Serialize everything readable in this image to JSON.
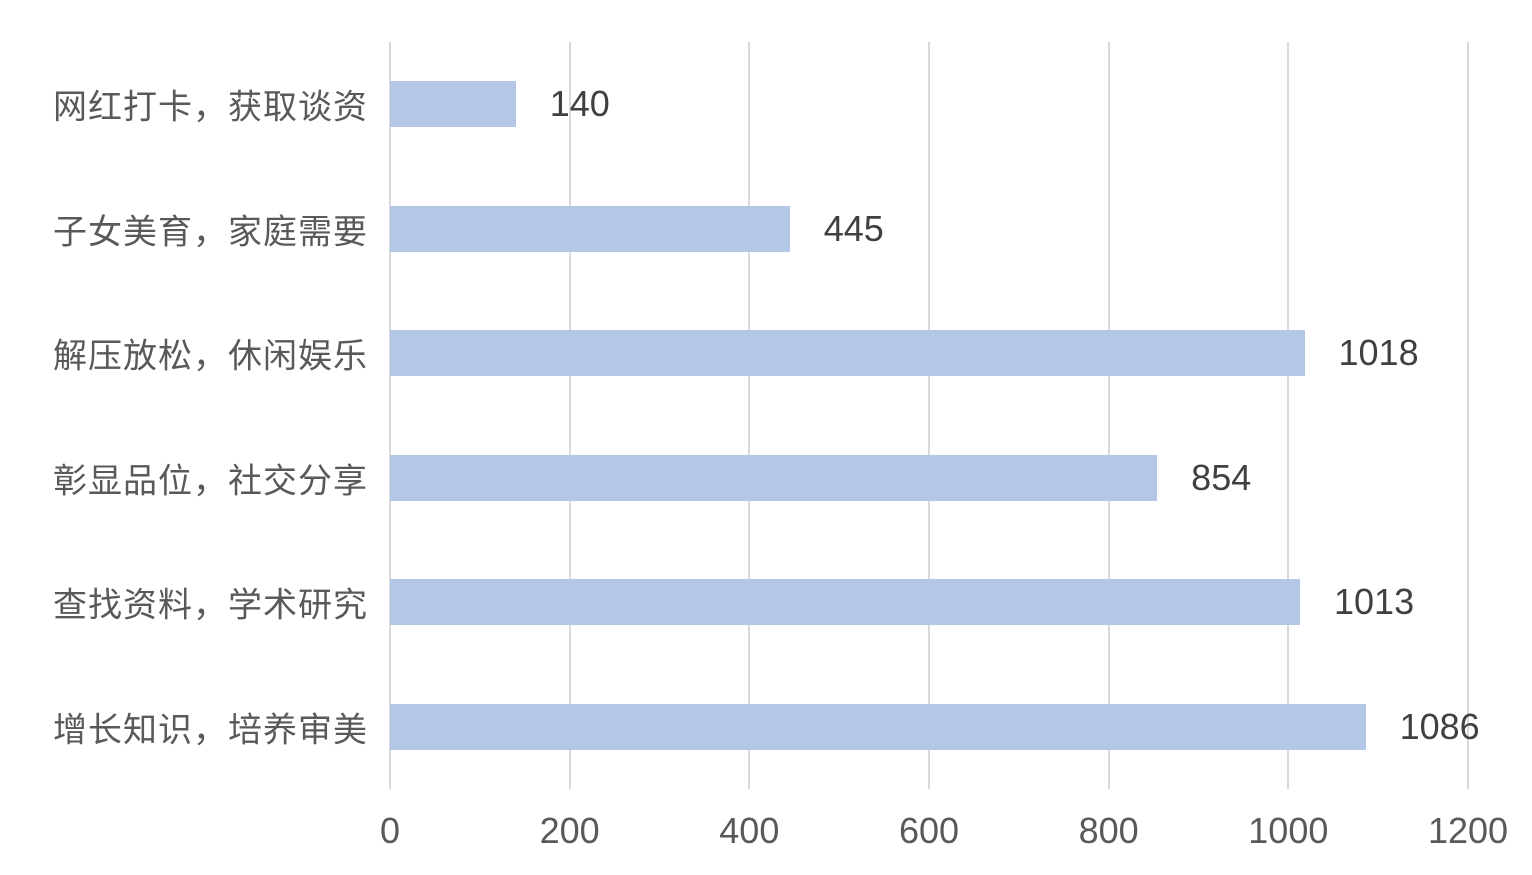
{
  "chart_data": {
    "type": "bar",
    "orientation": "horizontal",
    "title": "",
    "xlabel": "",
    "ylabel": "",
    "categories_top_to_bottom": [
      "网红打卡，获取谈资",
      "子女美育，家庭需要",
      "解压放松，休闲娱乐",
      "彰显品位，社交分享",
      "查找资料，学术研究",
      "增长知识，培养审美"
    ],
    "values": [
      140,
      445,
      1018,
      854,
      1013,
      1086
    ],
    "data_labels_visible": true,
    "xlim": [
      0,
      1200
    ],
    "x_ticks": [
      "0",
      "200",
      "400",
      "600",
      "800",
      "1000",
      "1200"
    ],
    "grid": "vertical-major-only",
    "legend": "none",
    "colors": {
      "bar_fill": "#B4C7E7",
      "gridline": "#D9D9D9",
      "category_text": "#595959",
      "value_text": "#404040",
      "background": "#FFFFFF"
    }
  }
}
